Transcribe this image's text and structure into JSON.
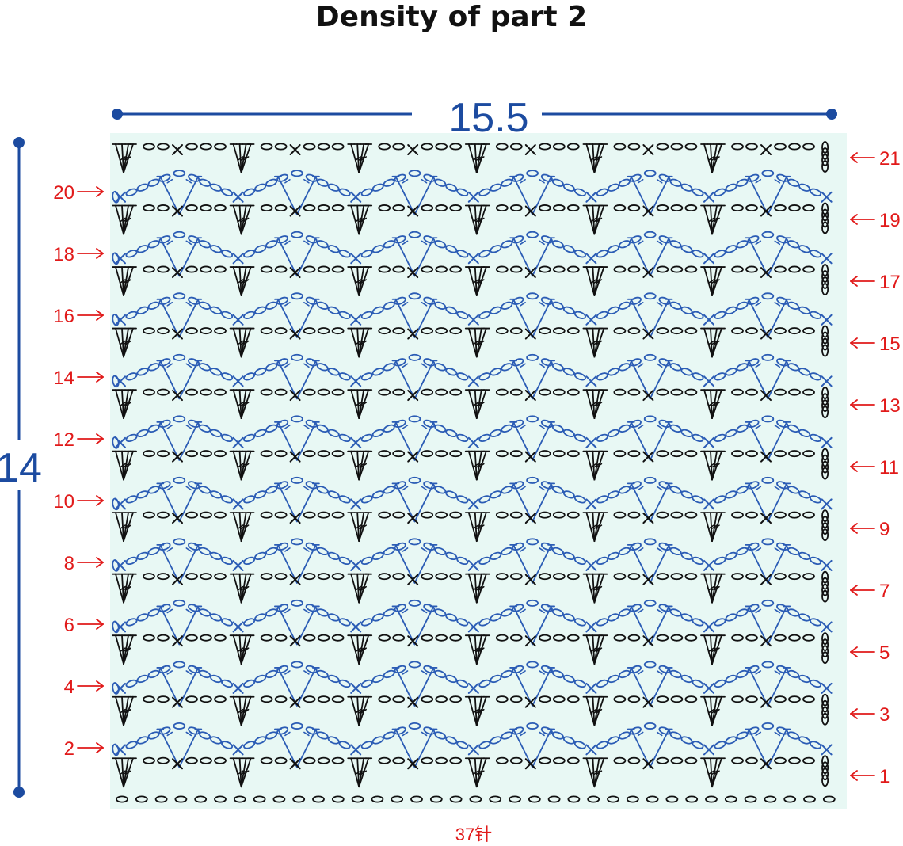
{
  "title": "Density of part 2",
  "dimensions": {
    "width_label": "15.5",
    "height_label": "14",
    "stitch_count_label": "37针"
  },
  "rows": {
    "count": 21,
    "left_labels": [
      "20",
      "18",
      "16",
      "14",
      "12",
      "10",
      "8",
      "6",
      "4",
      "2"
    ],
    "right_labels": [
      "21",
      "19",
      "17",
      "15",
      "13",
      "11",
      "9",
      "7",
      "5",
      "3",
      "1"
    ]
  },
  "repeats_per_row": 6,
  "colors": {
    "chart_background": "#e8f8f4",
    "dimension_blue": "#1c4ba0",
    "odd_row_stitches": "#111111",
    "even_row_stitches": "#2b5cb5",
    "row_arrows": "#e11a1a"
  },
  "symbols": {
    "foundation": "chain-icon",
    "odd_row": [
      "treble-crochet-icon",
      "chain-icon",
      "single-crochet-icon"
    ],
    "even_row": [
      "chain-icon",
      "double-crochet-icon",
      "single-crochet-icon"
    ]
  }
}
